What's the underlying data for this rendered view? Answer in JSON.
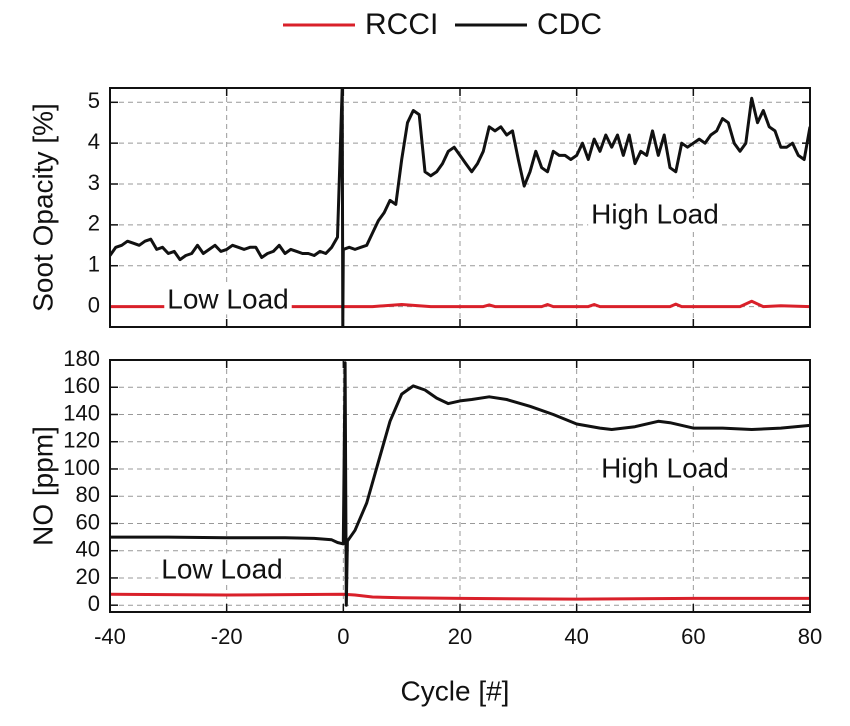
{
  "chart_data": [
    {
      "type": "line",
      "ylabel": "Soot Opacity [%]",
      "xlim": [
        -40,
        80
      ],
      "xticks": [
        -40,
        -20,
        0,
        20,
        40,
        60,
        80
      ],
      "ylim": [
        -0.5,
        5.35
      ],
      "yticks": [
        0,
        1,
        2,
        3,
        4,
        5
      ],
      "grid": true,
      "annotations": [
        "Low Load",
        "High Load"
      ],
      "series": [
        {
          "name": "RCCI",
          "color": "#d9202a",
          "x": [
            -40,
            -30,
            -20,
            -10,
            -2,
            0,
            5,
            10,
            15,
            20,
            24,
            25,
            26,
            30,
            34,
            35,
            36,
            40,
            42,
            43,
            44,
            50,
            56,
            57,
            58,
            60,
            68,
            70,
            72,
            75,
            80
          ],
          "values": [
            0,
            0,
            0,
            0,
            0,
            0,
            0,
            0.05,
            0,
            0,
            0,
            0.04,
            0,
            0,
            0,
            0.05,
            0,
            0,
            0,
            0.05,
            0,
            0,
            0,
            0.06,
            0,
            0,
            0,
            0.13,
            0,
            0.02,
            0
          ]
        },
        {
          "name": "CDC",
          "color": "#111111",
          "x": [
            -40,
            -39,
            -38,
            -37,
            -36,
            -35,
            -34,
            -33,
            -32,
            -31,
            -30,
            -29,
            -28,
            -27,
            -26,
            -25,
            -24,
            -23,
            -22,
            -21,
            -20,
            -19,
            -18,
            -17,
            -16,
            -15,
            -14,
            -13,
            -12,
            -11,
            -10,
            -9,
            -8,
            -7,
            -6,
            -5,
            -4,
            -3,
            -2,
            -1,
            -0.2,
            -0.1,
            0,
            1,
            2,
            3,
            4,
            5,
            6,
            7,
            8,
            9,
            10,
            11,
            12,
            13,
            14,
            15,
            16,
            17,
            18,
            19,
            20,
            21,
            22,
            23,
            24,
            25,
            26,
            27,
            28,
            29,
            30,
            31,
            32,
            33,
            34,
            35,
            36,
            37,
            38,
            39,
            40,
            41,
            42,
            43,
            44,
            45,
            46,
            47,
            48,
            49,
            50,
            51,
            52,
            53,
            54,
            55,
            56,
            57,
            58,
            59,
            60,
            61,
            62,
            63,
            64,
            65,
            66,
            67,
            68,
            69,
            70,
            71,
            72,
            73,
            74,
            75,
            76,
            77,
            78,
            79,
            80
          ],
          "values": [
            1.25,
            1.45,
            1.5,
            1.6,
            1.55,
            1.5,
            1.6,
            1.65,
            1.4,
            1.45,
            1.3,
            1.35,
            1.15,
            1.25,
            1.3,
            1.5,
            1.3,
            1.4,
            1.5,
            1.35,
            1.4,
            1.5,
            1.45,
            1.4,
            1.45,
            1.45,
            1.2,
            1.3,
            1.35,
            1.5,
            1.3,
            1.4,
            1.35,
            1.3,
            1.3,
            1.25,
            1.35,
            1.3,
            1.45,
            1.7,
            5.35,
            -0.5,
            1.4,
            1.45,
            1.4,
            1.45,
            1.5,
            1.8,
            2.1,
            2.3,
            2.6,
            2.5,
            3.6,
            4.5,
            4.8,
            4.7,
            3.3,
            3.2,
            3.3,
            3.5,
            3.8,
            3.9,
            3.7,
            3.5,
            3.3,
            3.5,
            3.8,
            4.4,
            4.3,
            4.4,
            4.2,
            4.3,
            3.6,
            2.95,
            3.3,
            3.8,
            3.4,
            3.3,
            3.8,
            3.7,
            3.7,
            3.6,
            3.7,
            4.0,
            3.6,
            4.1,
            3.8,
            4.2,
            3.9,
            4.2,
            3.7,
            4.2,
            3.5,
            3.8,
            3.7,
            4.3,
            3.7,
            4.2,
            3.4,
            3.3,
            4.0,
            3.9,
            4.0,
            4.1,
            4.0,
            4.2,
            4.3,
            4.6,
            4.5,
            4.0,
            3.8,
            4.0,
            5.1,
            4.5,
            4.8,
            4.4,
            4.3,
            3.9,
            3.9,
            4.0,
            3.7,
            3.6,
            4.4
          ]
        }
      ]
    },
    {
      "type": "line",
      "ylabel": "NO [ppm]",
      "xlabel": "Cycle [#]",
      "xlim": [
        -40,
        80
      ],
      "xticks": [
        -40,
        -20,
        0,
        20,
        40,
        60,
        80
      ],
      "ylim": [
        -5,
        180
      ],
      "yticks": [
        0,
        20,
        40,
        60,
        80,
        100,
        120,
        140,
        160,
        180
      ],
      "grid": true,
      "annotations": [
        "Low Load",
        "High Load"
      ],
      "series": [
        {
          "color": "#d9202a",
          "x": [
            -40,
            -20,
            0,
            2,
            5,
            10,
            20,
            40,
            60,
            80
          ],
          "values": [
            8,
            7.5,
            8,
            7.5,
            6,
            5.5,
            5,
            4.5,
            5,
            5
          ]
        },
        {
          "color": "#111111",
          "x": [
            -40,
            -30,
            -20,
            -10,
            -5,
            -2,
            -1,
            0,
            0.3,
            0.5,
            0.7,
            2,
            4,
            6,
            8,
            10,
            12,
            14,
            16,
            18,
            20,
            22,
            25,
            28,
            32,
            36,
            40,
            44,
            46,
            50,
            54,
            56,
            60,
            65,
            70,
            75,
            80
          ],
          "values": [
            50,
            50,
            49.5,
            49.5,
            49,
            48,
            46,
            45,
            178,
            0,
            47,
            55,
            75,
            105,
            135,
            155,
            161,
            158,
            152,
            148,
            150,
            151,
            153,
            151,
            146,
            140,
            133,
            130,
            129,
            131,
            135,
            134,
            130,
            130,
            129,
            130,
            132
          ]
        }
      ]
    }
  ]
}
